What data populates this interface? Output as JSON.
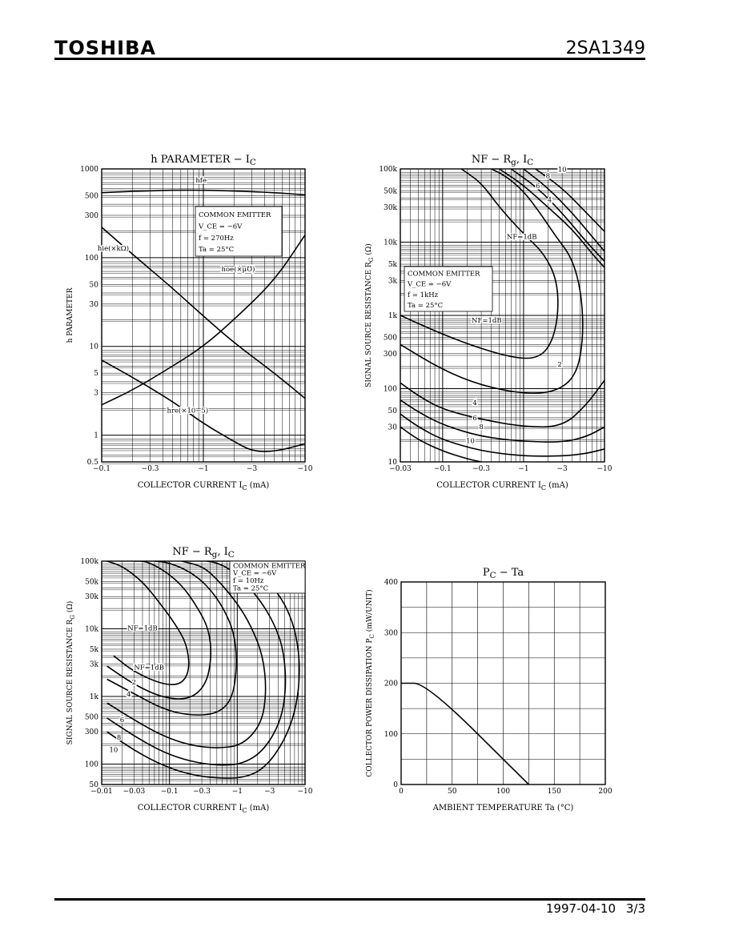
{
  "header": {
    "brand": "TOSHIBA",
    "part_number": "2SA1349"
  },
  "footer": {
    "date": "1997-04-10",
    "page": "3/3"
  },
  "chart_data": [
    {
      "type": "line",
      "title": "h PARAMETER − I",
      "title_sub": "C",
      "xlabel": "COLLECTOR CURRENT   I",
      "xlabel_sub": "C",
      "xlabel_unit": "(mA)",
      "ylabel": "h PARAMETER",
      "x_log": true,
      "y_log": true,
      "xlim": [
        0.1,
        10
      ],
      "ylim": [
        0.5,
        1000
      ],
      "xticks": [
        {
          "v": 0.1,
          "t": "−0.1"
        },
        {
          "v": 0.3,
          "t": "−0.3"
        },
        {
          "v": 1,
          "t": "−1"
        },
        {
          "v": 3,
          "t": "−3"
        },
        {
          "v": 10,
          "t": "−10"
        }
      ],
      "yticks": [
        {
          "v": 0.5,
          "t": "0.5"
        },
        {
          "v": 1,
          "t": "1"
        },
        {
          "v": 3,
          "t": "3"
        },
        {
          "v": 5,
          "t": "5"
        },
        {
          "v": 10,
          "t": "10"
        },
        {
          "v": 30,
          "t": "30"
        },
        {
          "v": 50,
          "t": "50"
        },
        {
          "v": 100,
          "t": "100"
        },
        {
          "v": 300,
          "t": "300"
        },
        {
          "v": 500,
          "t": "500"
        },
        {
          "v": 1000,
          "t": "1000"
        }
      ],
      "conditions": [
        "COMMON EMITTER",
        "V_CE = −6V",
        "f = 270Hz",
        "Ta = 25°C"
      ],
      "series": [
        {
          "name": "h_fe",
          "label": "hfe",
          "x": [
            0.1,
            0.2,
            0.5,
            1,
            2,
            5,
            10
          ],
          "y": [
            540,
            560,
            575,
            575,
            565,
            540,
            510
          ]
        },
        {
          "name": "h_ie",
          "label": "hie(×kΩ)",
          "x": [
            0.1,
            0.2,
            0.5,
            1,
            2,
            5,
            10
          ],
          "y": [
            220,
            110,
            45,
            22,
            11,
            5,
            2.6
          ]
        },
        {
          "name": "h_oe",
          "label": "hoe(×μ℧)",
          "x": [
            0.1,
            0.2,
            0.5,
            1,
            2,
            5,
            10
          ],
          "y": [
            2.2,
            3.2,
            6,
            10,
            20,
            55,
            180
          ]
        },
        {
          "name": "h_re",
          "label": "hre(×10−5)",
          "x": [
            0.1,
            0.2,
            0.5,
            1,
            2,
            3,
            5,
            10
          ],
          "y": [
            7,
            4.5,
            2.4,
            1.35,
            0.85,
            0.66,
            0.65,
            0.8
          ]
        }
      ]
    },
    {
      "type": "line",
      "title": "NF − R",
      "title_sub": "g",
      "title_suffix": ", I",
      "title_sub2": "C",
      "xlabel": "COLLECTOR CURRENT   I",
      "xlabel_sub": "C",
      "xlabel_unit": "(mA)",
      "ylabel": "SIGNAL SOURCE RESISTANCE   R",
      "ylabel_sub": "G",
      "ylabel_unit": "(Ω)",
      "x_log": true,
      "y_log": true,
      "xlim": [
        0.03,
        10
      ],
      "ylim": [
        10,
        100000
      ],
      "xticks": [
        {
          "v": 0.03,
          "t": "−0.03"
        },
        {
          "v": 0.1,
          "t": "−0.1"
        },
        {
          "v": 0.3,
          "t": "−0.3"
        },
        {
          "v": 1,
          "t": "−1"
        },
        {
          "v": 3,
          "t": "−3"
        },
        {
          "v": 10,
          "t": "−10"
        }
      ],
      "yticks": [
        {
          "v": 10,
          "t": "10"
        },
        {
          "v": 30,
          "t": "30"
        },
        {
          "v": 50,
          "t": "50"
        },
        {
          "v": 100,
          "t": "100"
        },
        {
          "v": 300,
          "t": "300"
        },
        {
          "v": 500,
          "t": "500"
        },
        {
          "v": 1000,
          "t": "1k"
        },
        {
          "v": 3000,
          "t": "3k"
        },
        {
          "v": 5000,
          "t": "5k"
        },
        {
          "v": 10000,
          "t": "10k"
        },
        {
          "v": 30000,
          "t": "30k"
        },
        {
          "v": 50000,
          "t": "50k"
        },
        {
          "v": 100000,
          "t": "100k"
        }
      ],
      "conditions": [
        "COMMON EMITTER",
        "V_CE = −6V",
        "f = 1kHz",
        "Ta = 25°C"
      ],
      "series": [
        {
          "name": "NF=1dB",
          "label": "NF=1dB",
          "x": [
            0.03,
            0.1,
            0.3,
            0.8,
            1.5,
            2.2,
            2.7,
            2.6,
            1.8,
            1.0,
            0.5,
            0.3,
            0.17
          ],
          "y": [
            1000,
            550,
            350,
            260,
            260,
            400,
            1000,
            3000,
            7000,
            13000,
            30000,
            65000,
            100000
          ]
        },
        {
          "name": "NF=2dB",
          "label": "2",
          "x": [
            0.03,
            0.1,
            0.3,
            1,
            2.5,
            4.5,
            5.5,
            5.2,
            4.0,
            2.5,
            1.6,
            1.0,
            0.6,
            0.4
          ],
          "y": [
            400,
            180,
            110,
            85,
            90,
            150,
            500,
            2000,
            6000,
            12000,
            25000,
            50000,
            80000,
            100000
          ]
        },
        {
          "name": "NF=4dB",
          "label": "4",
          "x": [
            0.03,
            0.05,
            0.1,
            0.3,
            1,
            3,
            6,
            10
          ],
          "y": [
            120,
            80,
            52,
            38,
            30,
            30,
            60,
            130
          ]
        },
        {
          "name": "NF=6dB",
          "label": "6",
          "x": [
            0.03,
            0.05,
            0.1,
            0.3,
            1,
            3,
            6,
            10
          ],
          "y": [
            70,
            48,
            32,
            22,
            19,
            18.5,
            22,
            30
          ]
        },
        {
          "name": "NF=8dB",
          "label": "8",
          "x": [
            0.03,
            0.05,
            0.1,
            0.3,
            1,
            3,
            6,
            10
          ],
          "y": [
            45,
            30,
            20,
            14,
            12,
            12,
            13,
            15
          ]
        },
        {
          "name": "NF=10dB",
          "label": "10",
          "x": [
            0.03,
            0.05,
            0.1,
            0.2,
            0.3
          ],
          "y": [
            30,
            20,
            14,
            11,
            10
          ]
        },
        {
          "name": "NF=4dB upper",
          "label": "4",
          "x": [
            0.5,
            1,
            2,
            4,
            7,
            10
          ],
          "y": [
            100000,
            60000,
            30000,
            15000,
            7000,
            4500
          ]
        },
        {
          "name": "NF=6dB upper",
          "label": "6",
          "x": [
            0.7,
            1.5,
            3,
            6,
            10
          ],
          "y": [
            100000,
            55000,
            25000,
            10000,
            5500
          ]
        },
        {
          "name": "NF=8dB upper",
          "label": "8",
          "x": [
            1,
            2,
            4,
            7,
            10
          ],
          "y": [
            100000,
            55000,
            25000,
            12000,
            7500
          ]
        },
        {
          "name": "NF=10dB upper",
          "label": "10",
          "x": [
            1.4,
            3,
            6,
            10
          ],
          "y": [
            100000,
            55000,
            25000,
            14000
          ]
        }
      ],
      "annotations": [
        {
          "text": "NF=1dB",
          "x": 0.95,
          "y": 11000
        },
        {
          "text": "NF=1dB",
          "x": 0.33,
          "y": 800
        }
      ]
    },
    {
      "type": "line",
      "title": "NF − R",
      "title_sub": "g",
      "title_suffix": ", I",
      "title_sub2": "C",
      "xlabel": "COLLECTOR CURRENT   I",
      "xlabel_sub": "C",
      "xlabel_unit": "(mA)",
      "ylabel": "SIGNAL SOURCE RESISTANCE   R",
      "ylabel_sub": "G",
      "ylabel_unit": "(Ω)",
      "x_log": true,
      "y_log": true,
      "xlim": [
        0.01,
        10
      ],
      "ylim": [
        50,
        100000
      ],
      "xticks": [
        {
          "v": 0.01,
          "t": "−0.01"
        },
        {
          "v": 0.03,
          "t": "−0.03"
        },
        {
          "v": 0.1,
          "t": "−0.1"
        },
        {
          "v": 0.3,
          "t": "−0.3"
        },
        {
          "v": 1,
          "t": "−1"
        },
        {
          "v": 3,
          "t": "−3"
        },
        {
          "v": 10,
          "t": "−10"
        }
      ],
      "yticks": [
        {
          "v": 50,
          "t": "50"
        },
        {
          "v": 100,
          "t": "100"
        },
        {
          "v": 300,
          "t": "300"
        },
        {
          "v": 500,
          "t": "500"
        },
        {
          "v": 1000,
          "t": "1k"
        },
        {
          "v": 3000,
          "t": "3k"
        },
        {
          "v": 5000,
          "t": "5k"
        },
        {
          "v": 10000,
          "t": "10k"
        },
        {
          "v": 30000,
          "t": "30k"
        },
        {
          "v": 50000,
          "t": "50k"
        },
        {
          "v": 100000,
          "t": "100k"
        }
      ],
      "conditions": [
        "COMMON EMITTER",
        "V_CE = −6V",
        "f = 10Hz",
        "Ta = 25°C"
      ],
      "series": [
        {
          "name": "NF=1dB",
          "label": "NF=1dB",
          "x": [
            0.015,
            0.03,
            0.08,
            0.15,
            0.2,
            0.18,
            0.12,
            0.07,
            0.04,
            0.02,
            0.012
          ],
          "y": [
            4000,
            2300,
            1500,
            1500,
            2500,
            6000,
            12000,
            25000,
            50000,
            85000,
            100000
          ]
        },
        {
          "name": "NF=2dB",
          "label": "2",
          "x": [
            0.012,
            0.03,
            0.08,
            0.2,
            0.35,
            0.42,
            0.38,
            0.25,
            0.15,
            0.08,
            0.045,
            0.03
          ],
          "y": [
            2800,
            1500,
            950,
            900,
            1500,
            4000,
            10000,
            22000,
            45000,
            75000,
            100000,
            100000
          ]
        },
        {
          "name": "NF=4dB",
          "label": "4",
          "x": [
            0.012,
            0.03,
            0.08,
            0.2,
            0.5,
            0.85,
            1.0,
            0.9,
            0.6,
            0.35,
            0.2,
            0.1,
            0.06
          ],
          "y": [
            1800,
            1100,
            650,
            520,
            550,
            900,
            3000,
            9000,
            22000,
            45000,
            70000,
            95000,
            100000
          ]
        },
        {
          "name": "NF=6dB",
          "label": "6",
          "x": [
            0.012,
            0.03,
            0.08,
            0.2,
            0.5,
            1.2,
            2.3,
            2.7,
            2.4,
            1.6,
            1.0,
            0.5,
            0.3,
            0.15
          ],
          "y": [
            800,
            450,
            260,
            190,
            170,
            190,
            400,
            1200,
            4000,
            11000,
            24000,
            55000,
            85000,
            100000
          ]
        },
        {
          "name": "NF=8dB",
          "label": "8",
          "x": [
            0.012,
            0.03,
            0.08,
            0.2,
            0.5,
            1.2,
            2.5,
            4.5,
            5.3,
            4.8,
            3.5,
            2.2,
            1.3,
            0.8,
            0.5,
            0.35
          ],
          "y": [
            480,
            260,
            150,
            110,
            95,
            100,
            160,
            450,
            1500,
            5000,
            12000,
            26000,
            48000,
            75000,
            95000,
            100000
          ]
        },
        {
          "name": "NF=10dB",
          "label": "10",
          "x": [
            0.012,
            0.03,
            0.08,
            0.2,
            0.5,
            1.2,
            2.5,
            5,
            7.5,
            8.5,
            7.5,
            5.5,
            3.5,
            2.2,
            1.4,
            0.9
          ],
          "y": [
            300,
            160,
            95,
            70,
            62,
            62,
            85,
            220,
            700,
            2500,
            8000,
            20000,
            40000,
            65000,
            90000,
            100000
          ]
        }
      ],
      "annotations": [
        {
          "text": "NF=1dB",
          "x": 0.05,
          "y": 9500
        },
        {
          "text": "NF=1dB",
          "x": 0.05,
          "y": 2500
        }
      ]
    },
    {
      "type": "line",
      "title": "P",
      "title_sub": "C",
      "title_suffix": " − Ta",
      "xlabel": "AMBIENT TEMPERATURE   Ta   (°C)",
      "ylabel": "COLLECTOR POWER DISSIPATION   P",
      "ylabel_sub": "C",
      "ylabel_unit": "(mW/UNIT)",
      "x_log": false,
      "y_log": false,
      "xlim": [
        0,
        200
      ],
      "ylim": [
        0,
        400
      ],
      "xticks": [
        {
          "v": 0,
          "t": "0"
        },
        {
          "v": 50,
          "t": "50"
        },
        {
          "v": 100,
          "t": "100"
        },
        {
          "v": 150,
          "t": "150"
        },
        {
          "v": 200,
          "t": "200"
        }
      ],
      "yticks": [
        {
          "v": 0,
          "t": "0"
        },
        {
          "v": 100,
          "t": "100"
        },
        {
          "v": 200,
          "t": "200"
        },
        {
          "v": 300,
          "t": "300"
        },
        {
          "v": 400,
          "t": "400"
        }
      ],
      "grid": true,
      "series": [
        {
          "name": "Pc",
          "x": [
            0,
            25,
            125
          ],
          "y": [
            200,
            200,
            0
          ]
        }
      ]
    }
  ]
}
